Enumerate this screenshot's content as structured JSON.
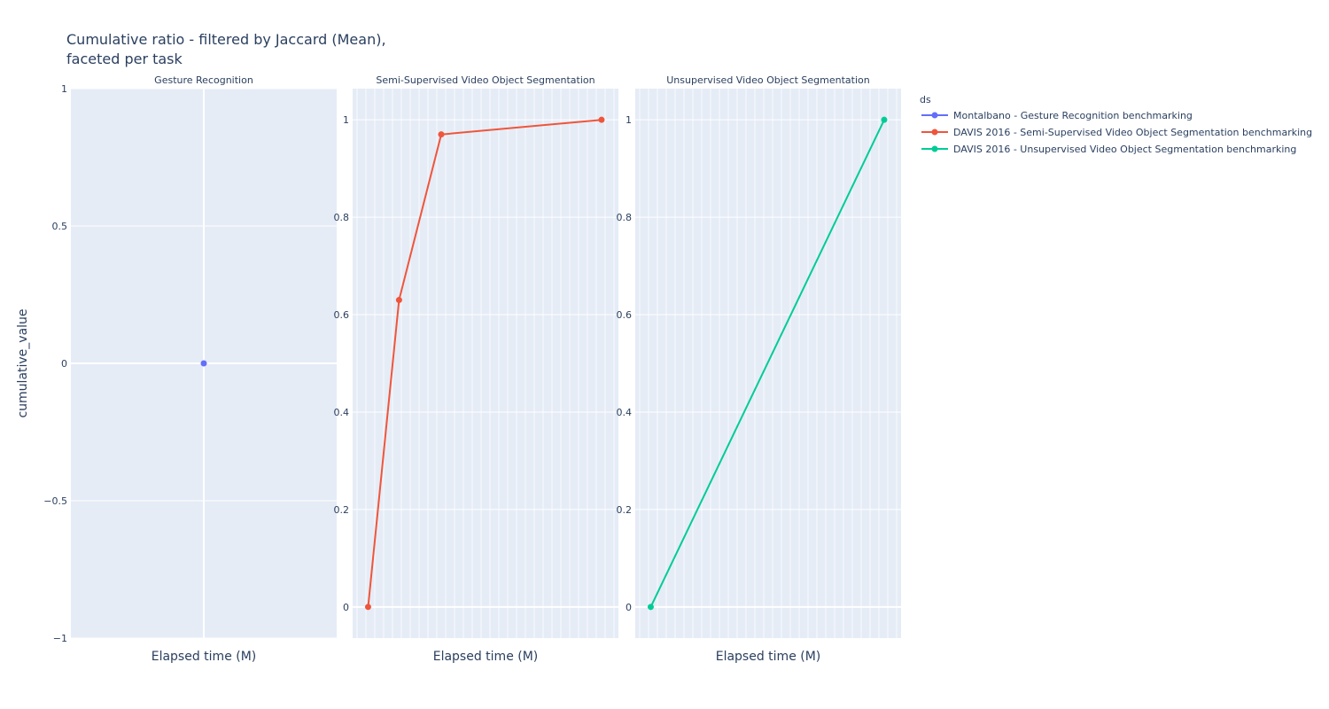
{
  "chart_data": {
    "type": "line",
    "title_lines": [
      "Cumulative ratio - filtered by Jaccard (Mean),",
      "faceted per task"
    ],
    "ylabel": "cumulative_value",
    "legend_title": "ds",
    "colors": {
      "plot_bg": "#e5ecf6",
      "grid": "#ffffff",
      "text": "#2a3f5f"
    },
    "facets": [
      {
        "title": "Gesture Recognition",
        "xlabel": "Elapsed time (M)",
        "ylim": [
          -1,
          1
        ],
        "yticks": [
          1,
          0.5,
          0,
          -0.5,
          -1
        ],
        "ytick_labels": [
          "1",
          "0.5",
          "0",
          "−0.5",
          "−1"
        ],
        "xlim": [
          -1,
          1
        ],
        "x_minor_grid_count": 0,
        "series": [
          {
            "name": "Montalbano - Gesture Recognition benchmarking",
            "color": "#636efa",
            "x": [
              0
            ],
            "y": [
              0
            ]
          }
        ]
      },
      {
        "title": "Semi-Supervised Video Object Segmentation",
        "xlabel": "Elapsed time (M)",
        "ylim": [
          -0.064,
          1.064
        ],
        "yticks": [
          1,
          0.8,
          0.6,
          0.4,
          0.2,
          0
        ],
        "ytick_labels": [
          "1",
          "0.8",
          "0.6",
          "0.4",
          "0.2",
          "0"
        ],
        "xlim": [
          -5.5,
          89
        ],
        "x_minor_grid_count": 30,
        "series": [
          {
            "name": "DAVIS 2016 - Semi-Supervised Video Object Segmentation benchmarking",
            "color": "#ef553b",
            "x": [
              0,
              11,
              26,
              83
            ],
            "y": [
              0,
              0.63,
              0.97,
              1
            ]
          }
        ]
      },
      {
        "title": "Unsupervised Video Object Segmentation",
        "xlabel": "Elapsed time (M)",
        "ylim": [
          -0.064,
          1.064
        ],
        "yticks": [
          1,
          0.8,
          0.6,
          0.4,
          0.2,
          0
        ],
        "ytick_labels": [
          "1",
          "0.8",
          "0.6",
          "0.4",
          "0.2",
          "0"
        ],
        "xlim": [
          -5.5,
          89
        ],
        "x_minor_grid_count": 30,
        "series": [
          {
            "name": "DAVIS 2016 - Unsupervised Video Object Segmentation benchmarking",
            "color": "#00cc96",
            "x": [
              0,
              83
            ],
            "y": [
              0,
              1
            ]
          }
        ]
      }
    ],
    "legend": [
      {
        "label": "Montalbano - Gesture Recognition benchmarking",
        "color": "#636efa"
      },
      {
        "label": "DAVIS 2016 - Semi-Supervised Video Object Segmentation benchmarking",
        "color": "#ef553b"
      },
      {
        "label": "DAVIS 2016 - Unsupervised Video Object Segmentation benchmarking",
        "color": "#00cc96"
      }
    ]
  }
}
